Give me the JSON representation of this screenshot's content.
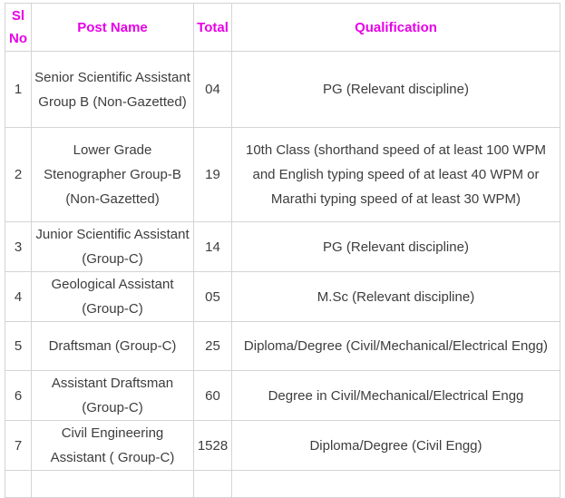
{
  "table": {
    "headers": {
      "sl_no": "Sl No",
      "post_name": "Post Name",
      "total": "Total",
      "qualification": "Qualification"
    },
    "style": {
      "header_text_color": "#E800E8",
      "body_text_color": "#3D3D3D",
      "border_color": "#D4D4D4"
    },
    "rows": [
      {
        "sl_no": "1",
        "post_name": "Senior Scientific Assistant Group B (Non-Gazetted)",
        "total": "04",
        "qualification": "PG (Relevant discipline)"
      },
      {
        "sl_no": "2",
        "post_name": "Lower Grade Stenographer Group-B (Non-Gazetted)",
        "total": "19",
        "qualification": "10th Class (shorthand speed of at least 100 WPM and English typing speed of at least 40 WPM or Marathi typing speed of at least 30 WPM)"
      },
      {
        "sl_no": "3",
        "post_name": "Junior Scientific Assistant (Group-C)",
        "total": "14",
        "qualification": "PG (Relevant discipline)"
      },
      {
        "sl_no": "4",
        "post_name": "Geological Assistant (Group-C)",
        "total": "05",
        "qualification": "M.Sc (Relevant discipline)"
      },
      {
        "sl_no": "5",
        "post_name": "Draftsman (Group-C)",
        "total": "25",
        "qualification": "Diploma/Degree (Civil/Mechanical/Electrical Engg)"
      },
      {
        "sl_no": "6",
        "post_name": "Assistant Draftsman (Group-C)",
        "total": "60",
        "qualification": "Degree in Civil/Mechanical/Electrical Engg"
      },
      {
        "sl_no": "7",
        "post_name": "Civil Engineering Assistant ( Group-C)",
        "total": "1528",
        "qualification": "Diploma/Degree (Civil Engg)"
      }
    ]
  }
}
